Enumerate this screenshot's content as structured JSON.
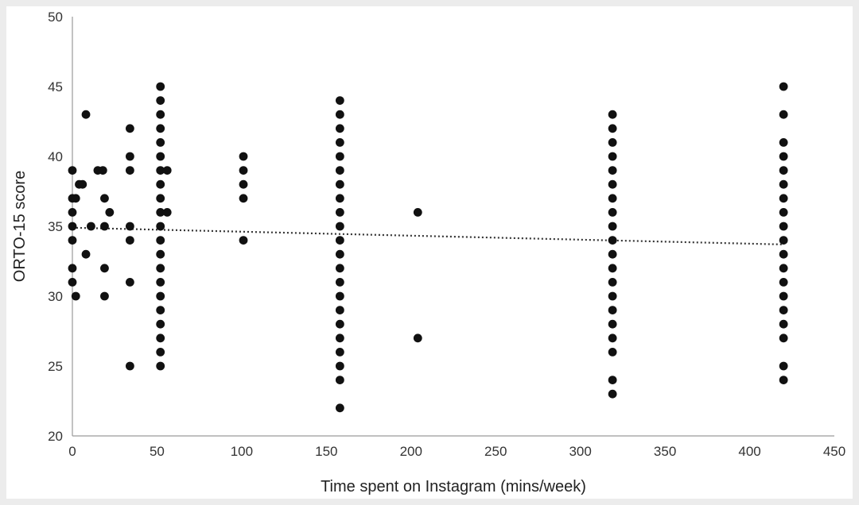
{
  "chart_data": {
    "type": "scatter",
    "xlabel": "Time spent on Instagram (mins/week)",
    "ylabel": "ORTO-15 score",
    "xlim": [
      0,
      450
    ],
    "ylim": [
      20,
      50
    ],
    "x_ticks": [
      0,
      50,
      100,
      150,
      200,
      250,
      300,
      350,
      400,
      450
    ],
    "y_ticks": [
      20,
      25,
      30,
      35,
      40,
      45,
      50
    ],
    "grid": false,
    "legend": "none",
    "marker_color": "#111111",
    "trendline": {
      "style": "dotted",
      "color": "#333333",
      "from": [
        0,
        34.9
      ],
      "to": [
        420,
        33.7
      ]
    },
    "points": [
      [
        0,
        39
      ],
      [
        0,
        37
      ],
      [
        0,
        36
      ],
      [
        0,
        35
      ],
      [
        0,
        34
      ],
      [
        0,
        32
      ],
      [
        0,
        31
      ],
      [
        2,
        37
      ],
      [
        2,
        30
      ],
      [
        4,
        38
      ],
      [
        6,
        38
      ],
      [
        8,
        43
      ],
      [
        8,
        33
      ],
      [
        11,
        35
      ],
      [
        15,
        39
      ],
      [
        18,
        39
      ],
      [
        19,
        37
      ],
      [
        19,
        35
      ],
      [
        19,
        32
      ],
      [
        19,
        30
      ],
      [
        22,
        36
      ],
      [
        34,
        42
      ],
      [
        34,
        40
      ],
      [
        34,
        39
      ],
      [
        34,
        35
      ],
      [
        34,
        34
      ],
      [
        34,
        31
      ],
      [
        34,
        25
      ],
      [
        52,
        45
      ],
      [
        52,
        44
      ],
      [
        52,
        43
      ],
      [
        52,
        42
      ],
      [
        52,
        41
      ],
      [
        52,
        40
      ],
      [
        52,
        39
      ],
      [
        52,
        38
      ],
      [
        52,
        37
      ],
      [
        52,
        36
      ],
      [
        52,
        35
      ],
      [
        52,
        34
      ],
      [
        52,
        33
      ],
      [
        52,
        32
      ],
      [
        52,
        31
      ],
      [
        52,
        30
      ],
      [
        52,
        29
      ],
      [
        52,
        28
      ],
      [
        52,
        27
      ],
      [
        52,
        26
      ],
      [
        52,
        25
      ],
      [
        56,
        39
      ],
      [
        56,
        36
      ],
      [
        101,
        40
      ],
      [
        101,
        39
      ],
      [
        101,
        38
      ],
      [
        101,
        37
      ],
      [
        101,
        34
      ],
      [
        158,
        44
      ],
      [
        158,
        43
      ],
      [
        158,
        42
      ],
      [
        158,
        41
      ],
      [
        158,
        40
      ],
      [
        158,
        39
      ],
      [
        158,
        38
      ],
      [
        158,
        37
      ],
      [
        158,
        36
      ],
      [
        158,
        35
      ],
      [
        158,
        34
      ],
      [
        158,
        33
      ],
      [
        158,
        32
      ],
      [
        158,
        31
      ],
      [
        158,
        30
      ],
      [
        158,
        29
      ],
      [
        158,
        28
      ],
      [
        158,
        27
      ],
      [
        158,
        26
      ],
      [
        158,
        25
      ],
      [
        158,
        24
      ],
      [
        158,
        22
      ],
      [
        204,
        36
      ],
      [
        204,
        27
      ],
      [
        319,
        43
      ],
      [
        319,
        42
      ],
      [
        319,
        41
      ],
      [
        319,
        40
      ],
      [
        319,
        39
      ],
      [
        319,
        38
      ],
      [
        319,
        37
      ],
      [
        319,
        36
      ],
      [
        319,
        35
      ],
      [
        319,
        34
      ],
      [
        319,
        33
      ],
      [
        319,
        32
      ],
      [
        319,
        31
      ],
      [
        319,
        30
      ],
      [
        319,
        29
      ],
      [
        319,
        28
      ],
      [
        319,
        27
      ],
      [
        319,
        26
      ],
      [
        319,
        24
      ],
      [
        319,
        23
      ],
      [
        420,
        45
      ],
      [
        420,
        43
      ],
      [
        420,
        41
      ],
      [
        420,
        40
      ],
      [
        420,
        39
      ],
      [
        420,
        38
      ],
      [
        420,
        37
      ],
      [
        420,
        36
      ],
      [
        420,
        35
      ],
      [
        420,
        34
      ],
      [
        420,
        33
      ],
      [
        420,
        32
      ],
      [
        420,
        31
      ],
      [
        420,
        30
      ],
      [
        420,
        29
      ],
      [
        420,
        28
      ],
      [
        420,
        27
      ],
      [
        420,
        25
      ],
      [
        420,
        24
      ]
    ]
  }
}
